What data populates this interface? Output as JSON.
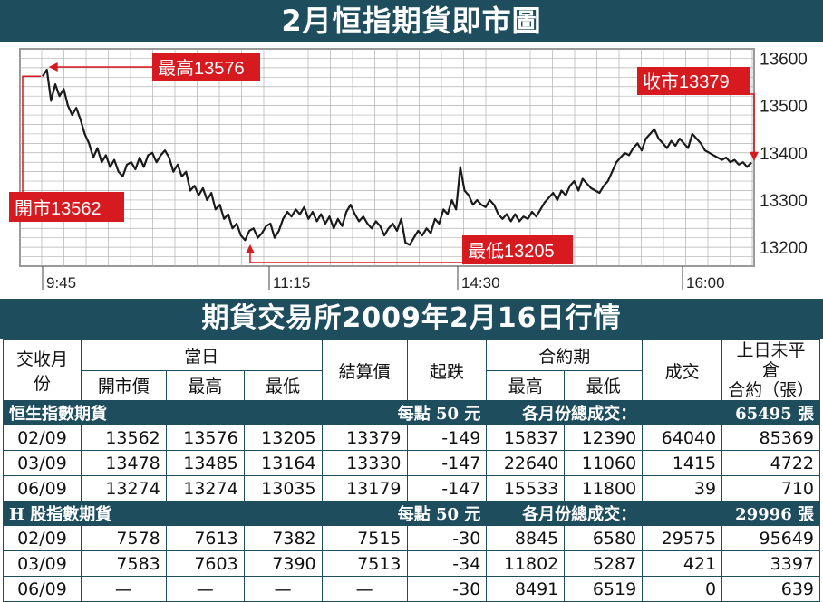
{
  "titles": {
    "chart_title": "2月恒指期貨即市圖",
    "table_title": "期貨交易所2009年2月16日行情"
  },
  "chart_data": {
    "type": "line",
    "x_ticks": [
      "9:45",
      "11:15",
      "14:30",
      "16:00"
    ],
    "y_ticks": [
      13600,
      13500,
      13400,
      13300,
      13200
    ],
    "ylim": [
      13160,
      13620
    ],
    "grid": true,
    "annotations": {
      "open": "開市13562",
      "high": "最高13576",
      "low": "最低13205",
      "close": "收市13379"
    },
    "open_value": 13562,
    "high_value": 13576,
    "low_value": 13205,
    "close_value": 13379,
    "series": [
      {
        "values": [
          13562,
          13576,
          13510,
          13545,
          13520,
          13535,
          13500,
          13480,
          13495,
          13470,
          13440,
          13420,
          13390,
          13410,
          13380,
          13395,
          13370,
          13385,
          13360,
          13350,
          13375,
          13380,
          13365,
          13390,
          13370,
          13395,
          13400,
          13380,
          13395,
          13405,
          13390,
          13360,
          13375,
          13350,
          13360,
          13320,
          13330,
          13310,
          13325,
          13300,
          13315,
          13280,
          13290,
          13260,
          13270,
          13240,
          13250,
          13225,
          13215,
          13235,
          13240,
          13220,
          13230,
          13245,
          13250,
          13220,
          13235,
          13260,
          13275,
          13265,
          13280,
          13270,
          13285,
          13260,
          13275,
          13255,
          13270,
          13250,
          13265,
          13240,
          13260,
          13245,
          13275,
          13290,
          13270,
          13255,
          13265,
          13250,
          13240,
          13255,
          13245,
          13225,
          13240,
          13250,
          13235,
          13260,
          13210,
          13205,
          13220,
          13235,
          13225,
          13240,
          13230,
          13260,
          13250,
          13280,
          13270,
          13300,
          13280,
          13370,
          13320,
          13310,
          13290,
          13300,
          13290,
          13285,
          13300,
          13290,
          13270,
          13260,
          13270,
          13255,
          13270,
          13255,
          13265,
          13260,
          13275,
          13265,
          13280,
          13295,
          13305,
          13315,
          13300,
          13320,
          13310,
          13330,
          13340,
          13320,
          13345,
          13335,
          13325,
          13320,
          13315,
          13330,
          13340,
          13360,
          13380,
          13390,
          13400,
          13395,
          13410,
          13420,
          13405,
          13430,
          13440,
          13450,
          13430,
          13420,
          13410,
          13425,
          13415,
          13430,
          13420,
          13410,
          13440,
          13430,
          13420,
          13405,
          13400,
          13395,
          13390,
          13385,
          13390,
          13380,
          13385,
          13375,
          13380,
          13370,
          13379
        ]
      }
    ]
  },
  "table": {
    "headers": {
      "month": "交收月份",
      "day_group": "當日",
      "open": "開市價",
      "high": "最高",
      "low": "最低",
      "settle": "結算價",
      "change": "起跌",
      "contract_group": "合約期",
      "c_high": "最高",
      "c_low": "最低",
      "volume": "成交",
      "oi_line1": "上日未平倉",
      "oi_line2": "合約（張）"
    },
    "sections": [
      {
        "name": "恒生指數期貨",
        "unit": "每點 50 元",
        "total_label": "各月份總成交：",
        "total": "65495 張",
        "rows": [
          [
            "02/09",
            "13562",
            "13576",
            "13205",
            "13379",
            "-149",
            "15837",
            "12390",
            "64040",
            "85369"
          ],
          [
            "03/09",
            "13478",
            "13485",
            "13164",
            "13330",
            "-147",
            "22640",
            "11060",
            "1415",
            "4722"
          ],
          [
            "06/09",
            "13274",
            "13274",
            "13035",
            "13179",
            "-147",
            "15533",
            "11800",
            "39",
            "710"
          ]
        ]
      },
      {
        "name": "H 股指數期貨",
        "unit": "每點 50 元",
        "total_label": "各月份總成交：",
        "total": "29996 張",
        "rows": [
          [
            "02/09",
            "7578",
            "7613",
            "7382",
            "7515",
            "-30",
            "8845",
            "6580",
            "29575",
            "95649"
          ],
          [
            "03/09",
            "7583",
            "7603",
            "7390",
            "7513",
            "-34",
            "11802",
            "5287",
            "421",
            "3397"
          ],
          [
            "06/09",
            "—",
            "—",
            "—",
            "—",
            "-30",
            "8491",
            "6519",
            "0",
            "639"
          ]
        ]
      }
    ]
  },
  "colors": {
    "banner": "#1e4d5e",
    "annotation": "#d71920",
    "line": "#1a1a1a",
    "grid": "#b0b0b0"
  }
}
